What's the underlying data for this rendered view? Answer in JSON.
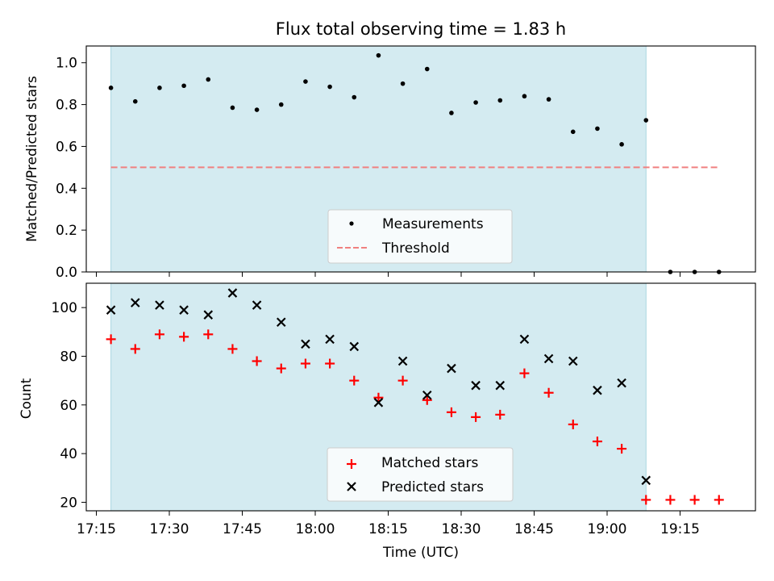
{
  "chart_data": [
    {
      "type": "scatter",
      "title": "Flux total observing time = 1.83 h",
      "xlabel": "",
      "ylabel": "Matched/Predicted stars",
      "ylim": [
        0.0,
        1.08
      ],
      "yticks": [
        "0.0",
        "0.2",
        "0.4",
        "0.6",
        "0.8",
        "1.0"
      ],
      "observing_window": [
        "17:18",
        "19:08"
      ],
      "legend_location": "lower-center",
      "series": [
        {
          "name": "Measurements",
          "marker": "dot",
          "color": "#000000",
          "x": [
            "17:18",
            "17:23",
            "17:28",
            "17:33",
            "17:38",
            "17:43",
            "17:48",
            "17:53",
            "17:58",
            "18:03",
            "18:08",
            "18:13",
            "18:18",
            "18:23",
            "18:28",
            "18:33",
            "18:38",
            "18:43",
            "18:48",
            "18:53",
            "18:58",
            "19:03",
            "19:08",
            "19:13",
            "19:18",
            "19:23"
          ],
          "y": [
            0.88,
            0.815,
            0.88,
            0.89,
            0.92,
            0.785,
            0.775,
            0.8,
            0.91,
            0.885,
            0.835,
            1.035,
            0.9,
            0.97,
            0.76,
            0.81,
            0.82,
            0.84,
            0.825,
            0.67,
            0.685,
            0.61,
            0.725,
            0.0,
            0.0,
            0.0
          ]
        },
        {
          "name": "Threshold",
          "marker": "dashed-line",
          "color": "#f08080",
          "x": [
            "17:18",
            "19:23"
          ],
          "y": [
            0.5,
            0.5
          ]
        }
      ]
    },
    {
      "type": "scatter",
      "title": "",
      "xlabel": "Time (UTC)",
      "ylabel": "Count",
      "ylim": [
        16.5,
        110
      ],
      "yticks": [
        "20",
        "40",
        "60",
        "80",
        "100"
      ],
      "xticks": [
        "17:15",
        "17:30",
        "17:45",
        "18:00",
        "18:15",
        "18:30",
        "18:45",
        "19:00",
        "19:15"
      ],
      "observing_window": [
        "17:18",
        "19:08"
      ],
      "legend_location": "lower-center",
      "series": [
        {
          "name": "Matched stars",
          "marker": "plus",
          "color": "#ff0000",
          "x": [
            "17:18",
            "17:23",
            "17:28",
            "17:33",
            "17:38",
            "17:43",
            "17:48",
            "17:53",
            "17:58",
            "18:03",
            "18:08",
            "18:13",
            "18:18",
            "18:23",
            "18:28",
            "18:33",
            "18:38",
            "18:43",
            "18:48",
            "18:53",
            "18:58",
            "19:03",
            "19:08",
            "19:13",
            "19:18",
            "19:23"
          ],
          "y": [
            87,
            83,
            89,
            88,
            89,
            83,
            78,
            75,
            77,
            77,
            70,
            63,
            70,
            62,
            57,
            55,
            56,
            73,
            65,
            52,
            45,
            42,
            21,
            21,
            21,
            21
          ]
        },
        {
          "name": "Predicted stars",
          "marker": "x",
          "color": "#000000",
          "x": [
            "17:18",
            "17:23",
            "17:28",
            "17:33",
            "17:38",
            "17:43",
            "17:48",
            "17:53",
            "17:58",
            "18:03",
            "18:08",
            "18:13",
            "18:18",
            "18:23",
            "18:28",
            "18:33",
            "18:38",
            "18:43",
            "18:48",
            "18:53",
            "18:58",
            "19:03",
            "19:08"
          ],
          "y": [
            99,
            102,
            101,
            99,
            97,
            106,
            101,
            94,
            85,
            87,
            84,
            61,
            78,
            64,
            75,
            68,
            68,
            87,
            79,
            78,
            66,
            69,
            29
          ]
        }
      ]
    }
  ],
  "colors": {
    "observing_window": "#d4ebf1",
    "observing_window_edge": "#a9d6e2"
  }
}
